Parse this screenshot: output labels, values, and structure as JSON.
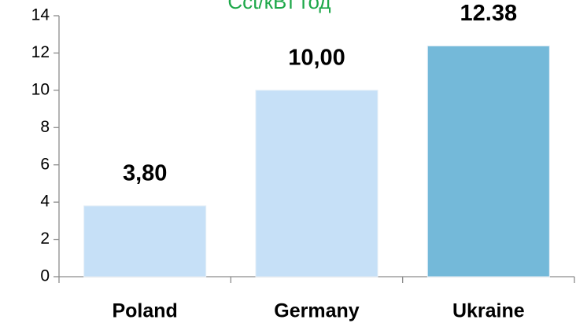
{
  "chart_data": {
    "type": "bar",
    "title": "Cct/кВт год",
    "categories": [
      "Poland",
      "Germany",
      "Ukraine"
    ],
    "values": [
      3.8,
      10,
      12.38
    ],
    "value_labels": [
      "3,80",
      "10,00",
      "12.38"
    ],
    "colors": [
      "#c6e0f7",
      "#c6e0f7",
      "#74b9d9"
    ],
    "title_color": "#1ea84a",
    "ylim": [
      0,
      14
    ],
    "yticks": [
      0,
      2,
      4,
      6,
      8,
      10,
      12,
      14
    ],
    "grid": false
  }
}
